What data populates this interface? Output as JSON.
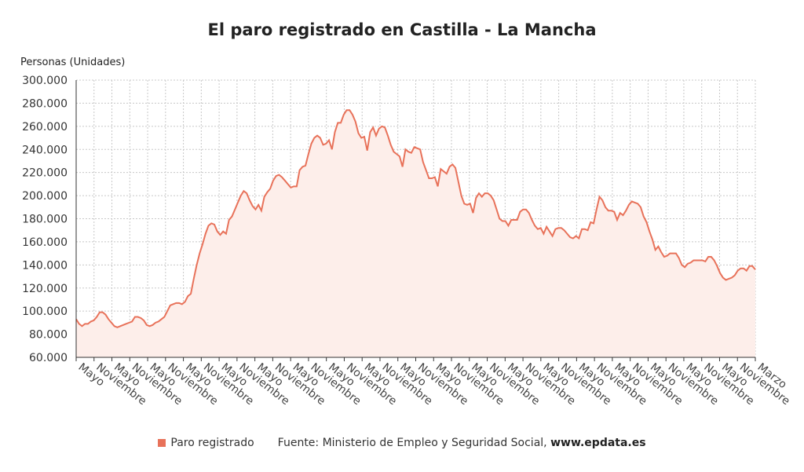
{
  "chart_data": {
    "type": "area",
    "title": "El paro registrado en Castilla - La Mancha",
    "ylabel": "Personas (Unidades)",
    "ylim": [
      60000,
      300000
    ],
    "y_ticks": [
      60000,
      80000,
      100000,
      120000,
      140000,
      160000,
      180000,
      200000,
      220000,
      240000,
      260000,
      280000,
      300000
    ],
    "y_tick_labels": [
      "60.000",
      "80.000",
      "100.000",
      "120.000",
      "140.000",
      "160.000",
      "180.000",
      "200.000",
      "220.000",
      "240.000",
      "260.000",
      "280.000",
      "300.000"
    ],
    "x_tick_labels": [
      "Mayo",
      "Noviembre",
      "Mayo",
      "Noviembre",
      "Mayo",
      "Noviembre",
      "Mayo",
      "Noviembre",
      "Mayo",
      "Noviembre",
      "Mayo",
      "Noviembre",
      "Mayo",
      "Noviembre",
      "Mayo",
      "Noviembre",
      "Mayo",
      "Noviembre",
      "Mayo",
      "Noviembre",
      "Mayo",
      "Noviembre",
      "Mayo",
      "Noviembre",
      "Mayo",
      "Noviembre",
      "Mayo",
      "Noviembre",
      "Mayo",
      "Noviembre",
      "Mayo",
      "Noviembre",
      "Mayo",
      "Noviembre",
      "Mayo",
      "Noviembre",
      "Mayo",
      "Noviembre",
      "Marzo"
    ],
    "grid": true,
    "legend_position": "bottom",
    "series": [
      {
        "name": "Paro registrado",
        "color": "#e8725a",
        "fill": "#fdeeea",
        "values": [
          93000,
          89000,
          87000,
          89000,
          89000,
          91000,
          92000,
          95000,
          99000,
          99000,
          97000,
          93000,
          90000,
          87000,
          86000,
          87000,
          88000,
          89000,
          90000,
          91000,
          95000,
          95000,
          94000,
          92000,
          88000,
          87000,
          88000,
          90000,
          91000,
          93000,
          95000,
          100000,
          105000,
          106000,
          107000,
          107000,
          106000,
          108000,
          113000,
          115000,
          128000,
          140000,
          150000,
          158000,
          167000,
          174000,
          176000,
          175000,
          169000,
          166000,
          169000,
          167000,
          179000,
          182000,
          188000,
          194000,
          200000,
          204000,
          202000,
          196000,
          191000,
          188000,
          192000,
          187000,
          199000,
          203000,
          206000,
          213000,
          217000,
          218000,
          216000,
          213000,
          210000,
          207000,
          208000,
          208000,
          222000,
          225000,
          226000,
          236000,
          245000,
          250000,
          252000,
          250000,
          244000,
          245000,
          248000,
          240000,
          255000,
          263000,
          263000,
          270000,
          274000,
          274000,
          270000,
          264000,
          254000,
          250000,
          251000,
          239000,
          255000,
          259000,
          252000,
          258000,
          260000,
          259000,
          252000,
          244000,
          238000,
          236000,
          234000,
          225000,
          240000,
          238000,
          237000,
          242000,
          241000,
          240000,
          229000,
          222000,
          215000,
          215000,
          216000,
          208000,
          223000,
          221000,
          219000,
          225000,
          227000,
          224000,
          212000,
          200000,
          193000,
          192000,
          193000,
          185000,
          198000,
          202000,
          199000,
          202000,
          202000,
          200000,
          196000,
          188000,
          180000,
          178000,
          178000,
          174000,
          179000,
          179000,
          179000,
          186000,
          188000,
          188000,
          185000,
          179000,
          174000,
          171000,
          172000,
          167000,
          173000,
          169000,
          165000,
          171000,
          172000,
          172000,
          170000,
          167000,
          164000,
          163000,
          165000,
          163000,
          171000,
          171000,
          170000,
          177000,
          176000,
          188000,
          199000,
          196000,
          190000,
          187000,
          187000,
          186000,
          179000,
          185000,
          183000,
          187000,
          192000,
          195000,
          194000,
          193000,
          190000,
          182000,
          177000,
          169000,
          162000,
          153000,
          156000,
          151000,
          147000,
          148000,
          150000,
          150000,
          150000,
          146000,
          140000,
          138000,
          141000,
          142000,
          144000,
          144000,
          144000,
          144000,
          143000,
          147000,
          147000,
          144000,
          139000,
          133000,
          129000,
          127000,
          128000,
          129000,
          131000,
          135000,
          137000,
          137000,
          135000,
          139000,
          139000,
          136000
        ]
      }
    ]
  },
  "legend": {
    "label": "Paro registrado",
    "source_text": "Fuente: Ministerio de Empleo y Seguridad Social,",
    "source_site": "www.epdata.es"
  }
}
